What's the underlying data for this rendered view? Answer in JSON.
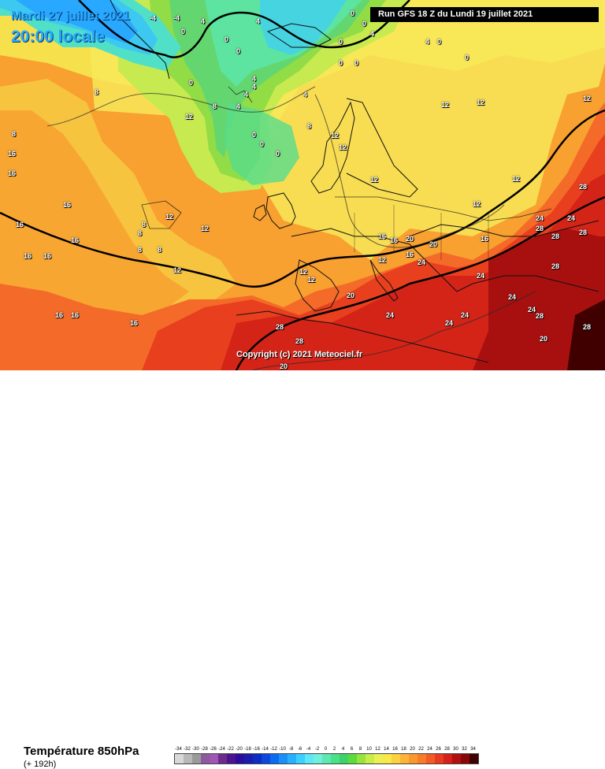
{
  "header": {
    "date": "Mardi 27 juillet 2021",
    "time": "20:00 locale",
    "run": "Run GFS 18 Z du Lundi 19 juillet 2021"
  },
  "map": {
    "copyright": "Copyright (c) 2021 Meteociel.fr",
    "isotherm_labels": [
      "-4",
      "-4",
      "4",
      "0",
      "0",
      "0",
      "4",
      "0",
      "0",
      "4",
      "0",
      "0",
      "0",
      "4",
      "0",
      "0",
      "4",
      "0",
      "4",
      "8",
      "4",
      "4",
      "4",
      "8",
      "12",
      "12",
      "12",
      "12",
      "12",
      "8",
      "12",
      "12",
      "12",
      "12",
      "12",
      "8",
      "0",
      "0",
      "0",
      "8",
      "16",
      "16",
      "16",
      "16",
      "16",
      "16",
      "16",
      "8",
      "8",
      "8",
      "12",
      "12",
      "12",
      "12",
      "16",
      "16",
      "16",
      "16",
      "16",
      "20",
      "20",
      "16",
      "24",
      "24",
      "24",
      "24",
      "24",
      "24",
      "24",
      "28",
      "28",
      "28",
      "28",
      "28",
      "28",
      "28",
      "28",
      "20",
      "20",
      "24",
      "24",
      "28",
      "12",
      "16",
      "20"
    ]
  },
  "legend": {
    "title": "Température 850hPa",
    "subtitle": "(+ 192h)",
    "scale_labels": [
      "-34",
      "-32",
      "-30",
      "-28",
      "-26",
      "-24",
      "-22",
      "-20",
      "-18",
      "-16",
      "-14",
      "-12",
      "-10",
      "-8",
      "-6",
      "-4",
      "-2",
      "0",
      "2",
      "4",
      "6",
      "8",
      "10",
      "12",
      "14",
      "16",
      "18",
      "20",
      "22",
      "24",
      "26",
      "28",
      "30",
      "32",
      "34"
    ],
    "scale_colors": [
      "#d8d8d8",
      "#b8b8b8",
      "#9a9a9a",
      "#8c5a9c",
      "#a056b4",
      "#6c2c8c",
      "#4c148c",
      "#2c0c9c",
      "#1c1cac",
      "#0c2cc4",
      "#0c48dc",
      "#0c6cf0",
      "#1890f8",
      "#28b0ff",
      "#3cd0ff",
      "#5ce8f8",
      "#70f0dc",
      "#5ce8b0",
      "#48e088",
      "#3cd468",
      "#5cdc3c",
      "#98e43c",
      "#c8ec48",
      "#ecf054",
      "#f8e848",
      "#fcd040",
      "#fcb438",
      "#fa9830",
      "#f87c28",
      "#f45a24",
      "#e83a20",
      "#d42018",
      "#b01010",
      "#880808",
      "#400000"
    ]
  }
}
